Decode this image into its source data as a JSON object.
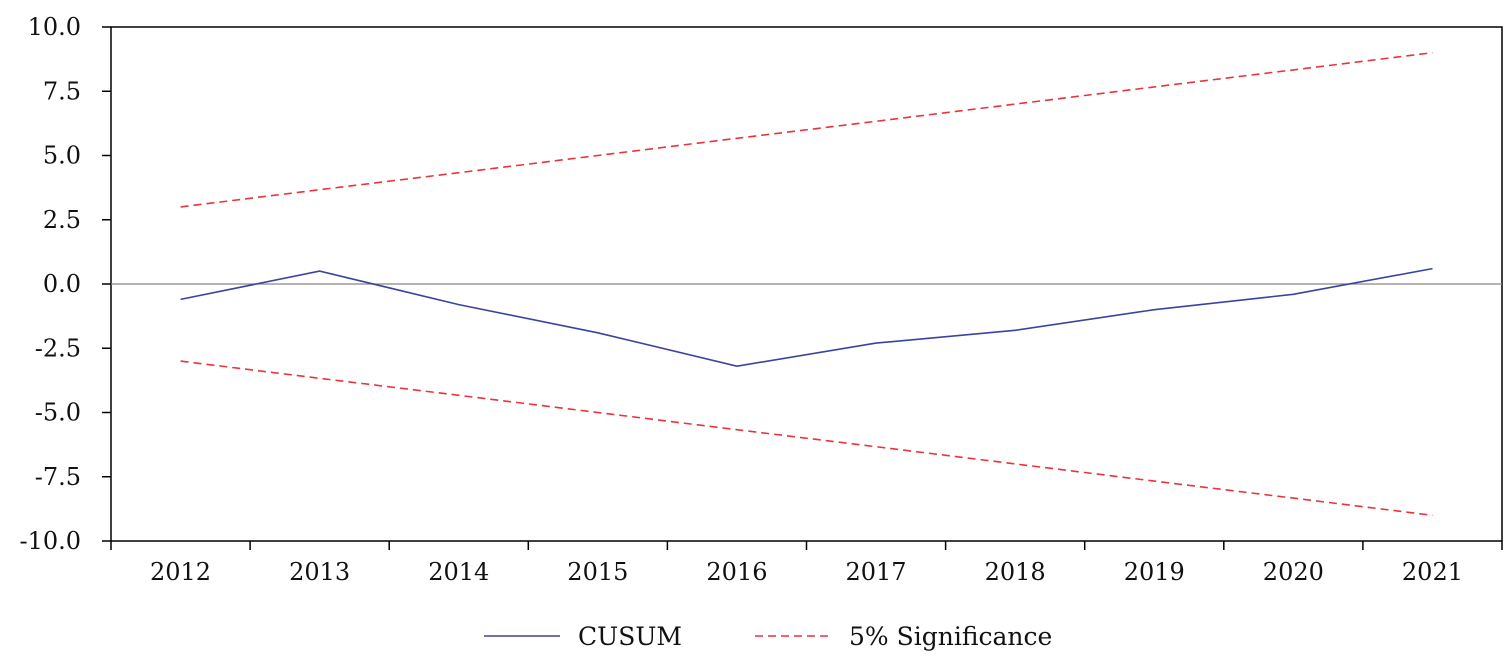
{
  "chart_data": {
    "type": "line",
    "title": "",
    "xlabel": "",
    "ylabel": "",
    "categories": [
      "2012",
      "2013",
      "2014",
      "2015",
      "2016",
      "2017",
      "2018",
      "2019",
      "2020",
      "2021"
    ],
    "ylim": [
      -10,
      10
    ],
    "yticks": [
      10,
      7.5,
      5,
      2.5,
      0,
      -2.5,
      -5,
      -7.5,
      -10
    ],
    "ytick_labels": [
      "10.0",
      "7.5",
      "5.0",
      "2.5",
      "0.0",
      "-2.5",
      "-5.0",
      "-7.5",
      "-10.0"
    ],
    "zero_line": true,
    "grid": false,
    "legend_position": "bottom-center",
    "series": [
      {
        "name": "CUSUM",
        "color": "#3a44a0",
        "style": "solid",
        "values": [
          -0.6,
          0.5,
          -0.8,
          -1.9,
          -3.2,
          -2.3,
          -1.8,
          -1.0,
          -0.4,
          0.6
        ]
      },
      {
        "name": "5% Significance",
        "color": "#e8343a",
        "style": "dashed",
        "values": [
          3.0,
          3.67,
          4.33,
          5.0,
          5.67,
          6.33,
          7.0,
          7.67,
          8.33,
          9.0
        ]
      },
      {
        "name": "",
        "color": "#e8343a",
        "style": "dashed",
        "values": [
          -3.0,
          -3.67,
          -4.33,
          -5.0,
          -5.67,
          -6.33,
          -7.0,
          -7.67,
          -8.33,
          -9.0
        ]
      }
    ]
  },
  "legend": {
    "items": [
      {
        "label": "CUSUM",
        "color": "#3a44a0",
        "style": "solid"
      },
      {
        "label": "5% Significance",
        "color": "#e8343a",
        "style": "dashed"
      }
    ]
  }
}
